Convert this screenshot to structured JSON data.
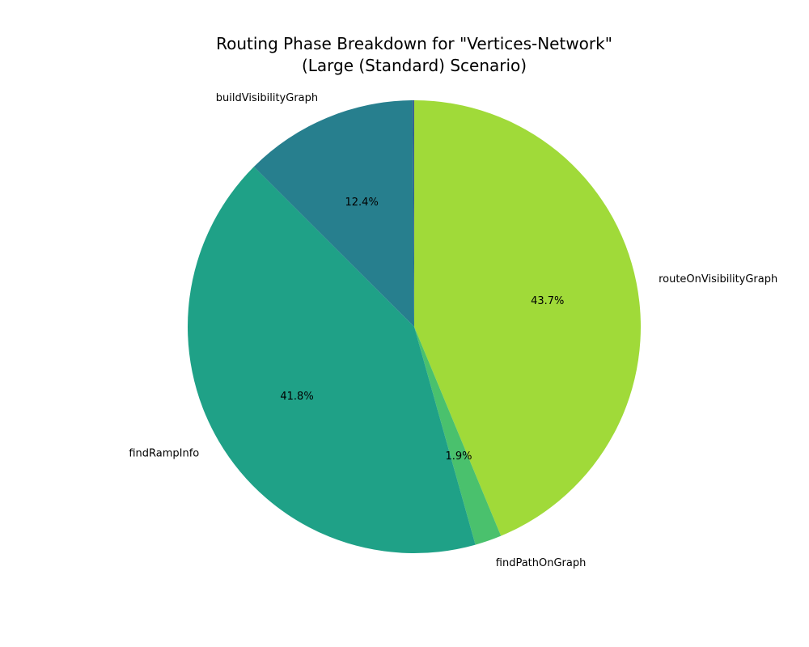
{
  "chart_data": {
    "type": "pie",
    "title": "Routing Phase Breakdown for \"Vertices-Network\"",
    "subtitle": "(Large (Standard) Scenario)",
    "categories": [
      "routeOnVisibilityGraph",
      "findPathOnGraph",
      "findRampInfo",
      "buildVisibilityGraph",
      ""
    ],
    "values": [
      43.7,
      1.9,
      41.8,
      12.4,
      0.1
    ],
    "percent_labels": [
      "43.7%",
      "1.9%",
      "41.8%",
      "12.4%",
      ""
    ],
    "colors": [
      "#a0da39",
      "#4ac16d",
      "#1fa187",
      "#277f8e",
      "#365c8d"
    ],
    "start_angle_deg": 90,
    "direction": "clockwise",
    "legend": "none"
  }
}
